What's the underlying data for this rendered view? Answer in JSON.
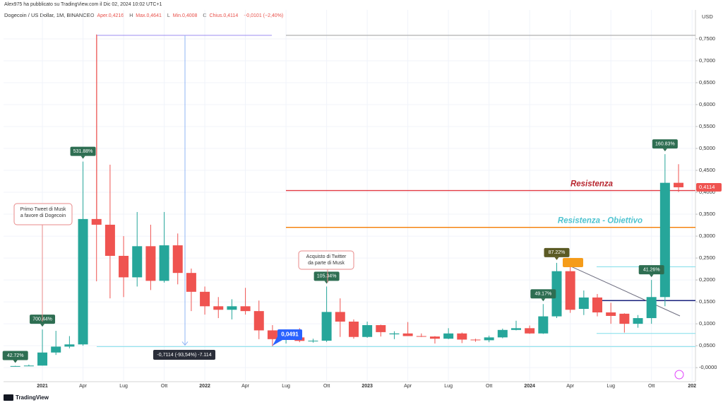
{
  "header": {
    "author_line": "Alex975 ha pubblicato su TradingView.com il Dic 02, 2024 10:02 UTC+1",
    "symbol": "Dogecoin / US Dollar, 1M, BINANCE",
    "ohlc_legend": [
      "O",
      "Aper.0,4216",
      "H",
      "Max.0,4641",
      "L",
      "Min.0,4008",
      "C",
      "Chius.0,4114",
      "−0,0101 (−2,40%)"
    ]
  },
  "footer": {
    "brand": "TradingView"
  },
  "chart_data": {
    "type": "candlestick",
    "currency": "USD",
    "grid": true,
    "up_color": "#26a69a",
    "down_color": "#ef5350",
    "categories": [
      null,
      null,
      "2021",
      null,
      null,
      "Apr",
      null,
      null,
      "Lug",
      null,
      null,
      "Ott",
      null,
      null,
      "2022",
      null,
      null,
      "Apr",
      null,
      null,
      "Lug",
      null,
      null,
      "Ott",
      null,
      null,
      "2023",
      null,
      null,
      "Apr",
      null,
      null,
      "Lug",
      null,
      null,
      "Ott",
      null,
      null,
      "2024",
      null,
      null,
      "Apr",
      null,
      null,
      "Lug",
      null,
      null,
      "Ott",
      null,
      null,
      "202"
    ],
    "open": [
      0.0026,
      0.0037,
      0.0047,
      0.0345,
      0.048,
      0.053,
      0.339,
      0.326,
      0.255,
      0.206,
      0.277,
      0.198,
      0.279,
      0.216,
      0.173,
      0.14,
      0.132,
      0.14,
      0.129,
      0.085,
      0.065,
      0.069,
      0.061,
      0.0615,
      0.127,
      0.105,
      0.07,
      0.097,
      0.076,
      0.078,
      0.072,
      0.071,
      0.066,
      0.078,
      0.064,
      0.0625,
      0.069,
      0.086,
      0.09,
      0.078,
      0.117,
      0.22,
      0.134,
      0.16,
      0.126,
      0.123,
      0.1,
      0.113,
      0.161,
      0.4216,
      null
    ],
    "high": [
      0.0042,
      0.007,
      0.087,
      0.084,
      0.072,
      0.47,
      0.76,
      0.463,
      0.3,
      0.355,
      0.326,
      0.355,
      0.306,
      0.226,
      0.185,
      0.161,
      0.156,
      0.182,
      0.153,
      0.097,
      0.075,
      0.09,
      0.066,
      0.185,
      0.158,
      0.11,
      0.105,
      0.098,
      0.083,
      0.104,
      0.078,
      0.072,
      0.09,
      0.08,
      0.066,
      0.073,
      0.089,
      0.107,
      0.096,
      0.145,
      0.239,
      0.239,
      0.176,
      0.168,
      0.148,
      0.124,
      0.12,
      0.2,
      0.487,
      0.4641,
      null
    ],
    "low": [
      0.0025,
      0.0036,
      0.0046,
      0.029,
      0.044,
      0.05,
      0.197,
      0.158,
      0.161,
      0.185,
      0.177,
      0.194,
      0.19,
      0.129,
      0.121,
      0.113,
      0.11,
      0.121,
      0.065,
      0.049,
      0.055,
      0.058,
      0.057,
      0.0585,
      0.07,
      0.066,
      0.068,
      0.071,
      0.065,
      0.073,
      0.07,
      0.055,
      0.065,
      0.056,
      0.059,
      0.058,
      0.067,
      0.085,
      0.077,
      0.077,
      0.113,
      0.125,
      0.12,
      0.117,
      0.1,
      0.08,
      0.091,
      0.1,
      0.14,
      0.4008,
      null
    ],
    "close": [
      0.0037,
      0.0047,
      0.0345,
      0.048,
      0.053,
      0.339,
      0.326,
      0.255,
      0.206,
      0.277,
      0.198,
      0.279,
      0.216,
      0.173,
      0.14,
      0.132,
      0.14,
      0.129,
      0.085,
      0.065,
      0.069,
      0.061,
      0.0615,
      0.127,
      0.105,
      0.07,
      0.097,
      0.081,
      0.078,
      0.072,
      0.071,
      0.066,
      0.078,
      0.064,
      0.0625,
      0.069,
      0.086,
      0.09,
      0.078,
      0.117,
      0.22,
      0.132,
      0.16,
      0.126,
      0.118,
      0.1,
      0.113,
      0.161,
      0.4216,
      0.4114,
      null
    ],
    "ylim": [
      -0.032,
      0.816
    ],
    "yticks": [
      {
        "value": 0,
        "label": "-0,0000"
      },
      {
        "value": 0.05,
        "label": "0,0500"
      },
      {
        "value": 0.1,
        "label": "0,1000"
      },
      {
        "value": 0.15,
        "label": "0,1500"
      },
      {
        "value": 0.2,
        "label": "0,2000"
      },
      {
        "value": 0.25,
        "label": "0,2500"
      },
      {
        "value": 0.3,
        "label": "0,3000"
      },
      {
        "value": 0.35,
        "label": "0,3500"
      },
      {
        "value": 0.4,
        "label": "0,4000"
      },
      {
        "value": 0.45,
        "label": "0,4500"
      },
      {
        "value": 0.5,
        "label": "0,5000"
      },
      {
        "value": 0.55,
        "label": "0,5500"
      },
      {
        "value": 0.6,
        "label": "0,6000"
      },
      {
        "value": 0.65,
        "label": "0,6500"
      },
      {
        "value": 0.7,
        "label": "0,7000"
      },
      {
        "value": 0.75,
        "label": "0,7500"
      }
    ],
    "levels": [
      {
        "name": "Resistenza",
        "value": 0.404,
        "color": "#e23a44",
        "label_color": "#b8262f"
      },
      {
        "name": "Resistenza - Obiettivo",
        "value": 0.32,
        "color": "#f57c00",
        "label_color": "#4ec3d0"
      },
      {
        "value": 0.153,
        "color": "#1a237e"
      },
      {
        "value": 0.23,
        "color": "#80deea"
      },
      {
        "value": 0.078,
        "color": "#80deea"
      },
      {
        "value": 0.048,
        "color": "#80deea"
      },
      {
        "value": 0.758,
        "color": "#9e9e9e"
      }
    ],
    "change_labels": [
      "42.72%",
      "700.44%",
      "531.88%",
      "105.34%",
      "49.17%",
      "87.22%",
      "41.26%",
      "160.83%"
    ],
    "callouts": [
      [
        "Primo Tweet di Musk",
        "a favore di Dogecoin"
      ],
      [
        "Acquisto di Twitter",
        "da parte di Musk"
      ]
    ],
    "measure_label": "-0,7114 (-93,54%) -7.114",
    "marker_label": "0,0491",
    "price_label": "0,4114"
  }
}
